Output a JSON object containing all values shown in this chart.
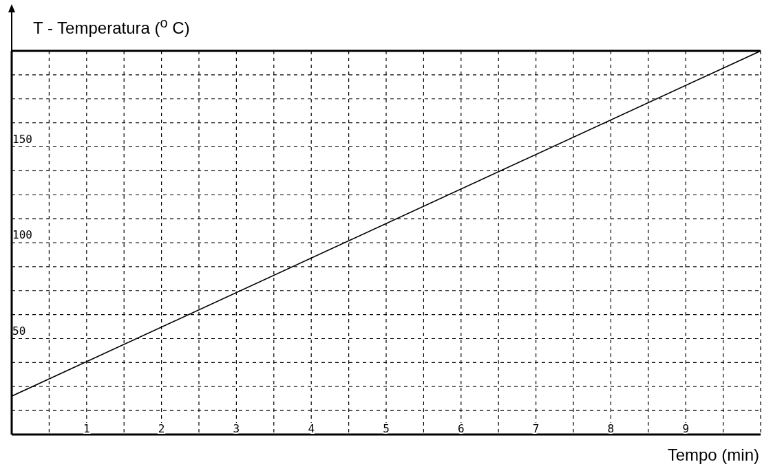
{
  "chart_data": {
    "type": "line",
    "ylabel": "T - Temperatura ($^{o}$ C)",
    "xlabel": "Tempo (min)",
    "x": [
      0,
      10
    ],
    "series": [
      {
        "color": "#000000",
        "values": [
          20,
          200
        ]
      }
    ],
    "xlim": [
      0,
      10
    ],
    "ylim": [
      0,
      200
    ],
    "xticks": [
      {
        "value": 0,
        "label": null
      },
      {
        "value": 0.5,
        "label": null
      },
      1,
      {
        "value": 1.5,
        "label": null
      },
      2,
      {
        "value": 2.5,
        "label": null
      },
      3,
      {
        "value": 3.5,
        "label": null
      },
      4,
      {
        "value": 4.5,
        "label": null
      },
      5,
      {
        "value": 5.5,
        "label": null
      },
      6,
      {
        "value": 6.5,
        "label": null
      },
      7,
      {
        "value": 7.5,
        "label": null
      },
      8,
      {
        "value": 8.5,
        "label": null
      },
      9,
      {
        "value": 9.5,
        "label": null
      },
      {
        "value": 10,
        "label": null
      }
    ],
    "yticks": [
      {
        "value": 0,
        "label": null
      },
      {
        "value": 12.5,
        "label": null
      },
      {
        "value": 25,
        "label": null
      },
      {
        "value": 37.5,
        "label": null
      },
      50,
      {
        "value": 62.5,
        "label": null
      },
      {
        "value": 75,
        "label": null
      },
      {
        "value": 87.5,
        "label": null
      },
      100,
      {
        "value": 112.5,
        "label": null
      },
      {
        "value": 125,
        "label": null
      },
      {
        "value": 137.5,
        "label": null
      },
      150,
      {
        "value": 162.5,
        "label": null
      },
      {
        "value": 175,
        "label": null
      },
      {
        "value": 187.5,
        "label": null
      },
      {
        "value": 200,
        "label": null
      }
    ],
    "grid": true,
    "marker": "none",
    "line_style": "solid",
    "legend": false
  }
}
